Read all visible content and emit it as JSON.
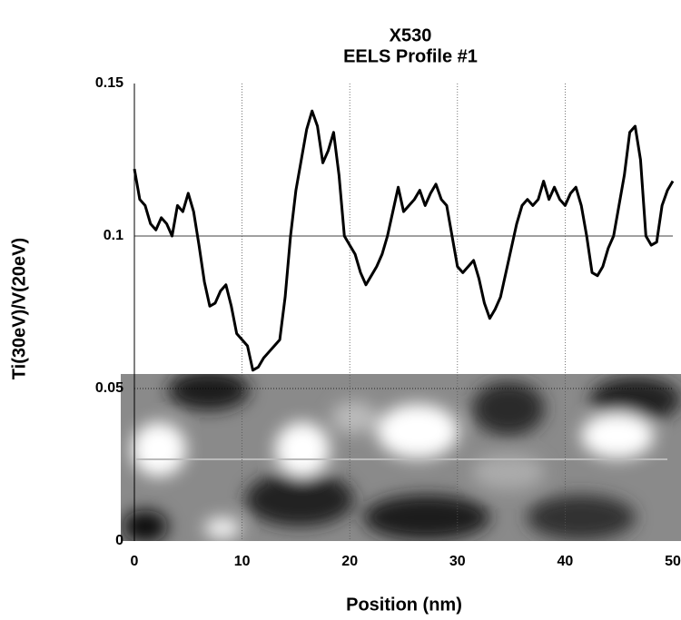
{
  "chart_data": {
    "type": "line",
    "title": "X530",
    "subtitle": "EELS Profile #1",
    "xlabel": "Position (nm)",
    "ylabel": "Ti(30eV)/V(20eV)",
    "xlim": [
      0,
      50
    ],
    "ylim": [
      0,
      0.15
    ],
    "xticks": [
      0,
      10,
      20,
      30,
      40,
      50
    ],
    "yticks": [
      0,
      0.05,
      0.1,
      0.15
    ],
    "grid": true,
    "x": [
      0,
      0.5,
      1,
      1.5,
      2,
      2.5,
      3,
      3.5,
      4,
      4.5,
      5,
      5.5,
      6,
      6.5,
      7,
      7.5,
      8,
      8.5,
      9,
      9.5,
      10,
      10.5,
      11,
      11.5,
      12,
      12.5,
      13,
      13.5,
      14,
      14.5,
      15,
      15.5,
      16,
      16.5,
      17,
      17.5,
      18,
      18.5,
      19,
      19.5,
      20,
      20.5,
      21,
      21.5,
      22,
      22.5,
      23,
      23.5,
      24,
      24.5,
      25,
      25.5,
      26,
      26.5,
      27,
      27.5,
      28,
      28.5,
      29,
      29.5,
      30,
      30.5,
      31,
      31.5,
      32,
      32.5,
      33,
      33.5,
      34,
      34.5,
      35,
      35.5,
      36,
      36.5,
      37,
      37.5,
      38,
      38.5,
      39,
      39.5,
      40,
      40.5,
      41,
      41.5,
      42,
      42.5,
      43,
      43.5,
      44,
      44.5,
      45,
      45.5,
      46,
      46.5,
      47,
      47.5,
      48,
      48.5,
      49,
      49.5,
      50
    ],
    "series": [
      {
        "color": "#000000",
        "values": [
          0.122,
          0.112,
          0.11,
          0.104,
          0.102,
          0.106,
          0.104,
          0.1,
          0.11,
          0.108,
          0.114,
          0.108,
          0.097,
          0.085,
          0.077,
          0.078,
          0.082,
          0.084,
          0.077,
          0.068,
          0.066,
          0.064,
          0.056,
          0.057,
          0.06,
          0.062,
          0.064,
          0.066,
          0.08,
          0.1,
          0.115,
          0.125,
          0.135,
          0.141,
          0.136,
          0.124,
          0.128,
          0.134,
          0.12,
          0.1,
          0.097,
          0.094,
          0.088,
          0.084,
          0.087,
          0.09,
          0.094,
          0.1,
          0.108,
          0.116,
          0.108,
          0.11,
          0.112,
          0.115,
          0.11,
          0.114,
          0.117,
          0.112,
          0.11,
          0.1,
          0.09,
          0.088,
          0.09,
          0.092,
          0.086,
          0.078,
          0.073,
          0.076,
          0.08,
          0.088,
          0.096,
          0.104,
          0.11,
          0.112,
          0.11,
          0.112,
          0.118,
          0.112,
          0.116,
          0.112,
          0.11,
          0.114,
          0.116,
          0.11,
          0.1,
          0.088,
          0.087,
          0.09,
          0.096,
          0.1,
          0.11,
          0.12,
          0.134,
          0.136,
          0.125,
          0.1,
          0.097,
          0.098,
          0.11,
          0.115,
          0.118
        ]
      }
    ]
  }
}
